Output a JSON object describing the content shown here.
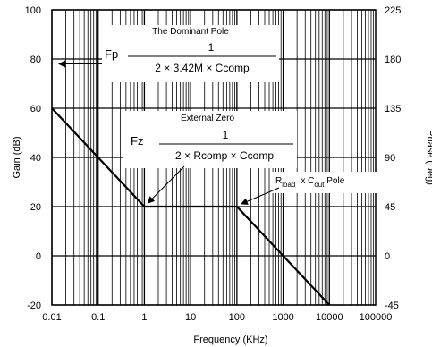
{
  "chart_data": {
    "type": "line",
    "x_scale": "log",
    "xlabel": "Frequency (KHz)",
    "ylabel_left": "Gain (dB)",
    "ylabel_right": "Phase (Deg)",
    "xlim": [
      0.01,
      100000
    ],
    "ylim_left": [
      -20,
      100
    ],
    "ylim_right": [
      -45,
      225
    ],
    "grid": true,
    "x_ticks": [
      "0.01",
      "0.1",
      "1",
      "10",
      "100",
      "1000",
      "10000",
      "100000"
    ],
    "y_ticks_left": [
      "100",
      "80",
      "60",
      "40",
      "20",
      "0",
      "-20"
    ],
    "y_ticks_right": [
      "225",
      "180",
      "135",
      "90",
      "45",
      "0",
      "-45"
    ],
    "series": [
      {
        "x": [
          0.01,
          1,
          100,
          10000
        ],
        "y": [
          60,
          20,
          20,
          -20
        ]
      }
    ],
    "annotations": {
      "dominant_pole": {
        "title": "The Dominant Pole",
        "symbol": "Fp",
        "numerator": "1",
        "denominator": "2  ×  3.42M  ×  Ccomp",
        "arrow_to": [
          0.01,
          78
        ]
      },
      "external_zero": {
        "title": "External Zero",
        "symbol": "Fz",
        "numerator": "1",
        "denominator": "2  ×  Rcomp × Ccomp",
        "arrow_to": [
          1,
          20
        ]
      },
      "output_pole": {
        "r": "R",
        "r_sub": "load",
        "times": "x  C",
        "c_sub": "out",
        "suffix": " Pole",
        "arrow_to": [
          100,
          20
        ]
      }
    }
  }
}
